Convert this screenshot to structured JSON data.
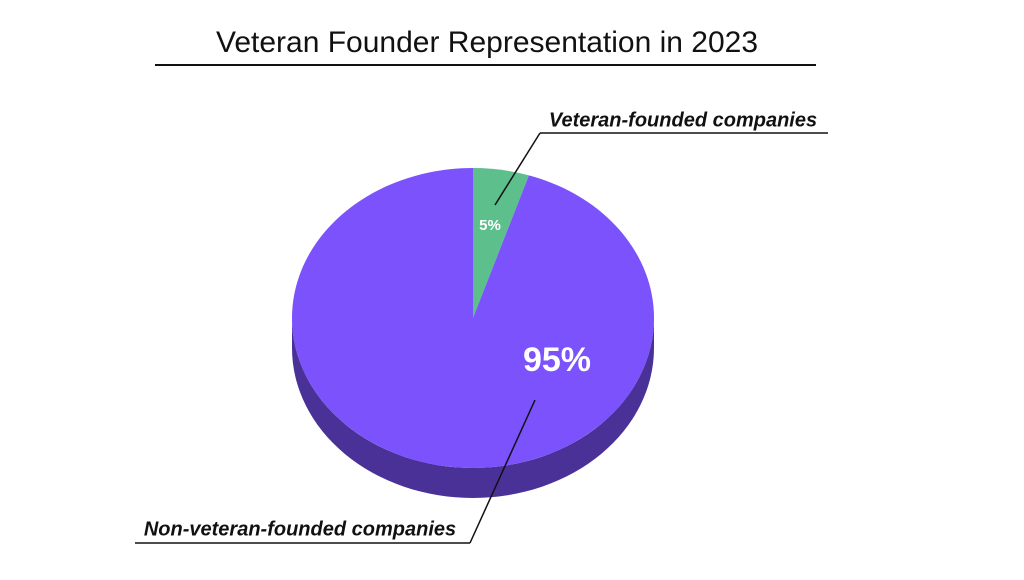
{
  "chart_data": {
    "type": "pie",
    "title": "Veteran Founder Representation in 2023",
    "categories": [
      "Veteran-founded companies",
      "Non-veteran-founded companies"
    ],
    "values": [
      5,
      95
    ],
    "value_labels": [
      "5%",
      "95%"
    ],
    "colors": [
      "#5dbf8c",
      "#7b52fc"
    ]
  }
}
